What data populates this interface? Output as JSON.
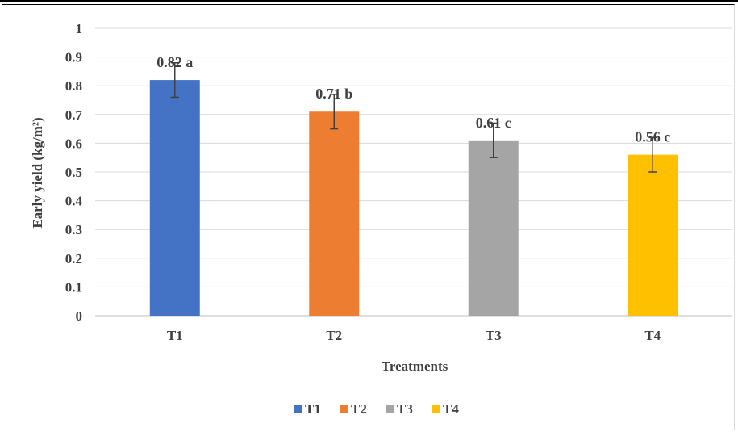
{
  "chart_data": {
    "type": "bar",
    "categories": [
      "T1",
      "T2",
      "T3",
      "T4"
    ],
    "values": [
      0.82,
      0.71,
      0.61,
      0.56
    ],
    "error": [
      0.06,
      0.06,
      0.06,
      0.06
    ],
    "data_labels": [
      "0.82 a",
      "0.71 b",
      "0.61 c",
      "0.56 c"
    ],
    "colors": [
      "#4472c4",
      "#ed7d31",
      "#a5a5a5",
      "#ffc000"
    ],
    "xlabel": "Treatments",
    "ylabel": "Early yield  (kg/m²)",
    "ylim": [
      0,
      1
    ],
    "yticks": [
      0,
      0.1,
      0.2,
      0.3,
      0.4,
      0.5,
      0.6,
      0.7,
      0.8,
      0.9,
      1
    ],
    "ytick_labels": [
      "0",
      "0.1",
      "0.2",
      "0.3",
      "0.4",
      "0.5",
      "0.6",
      "0.7",
      "0.8",
      "0.9",
      "1"
    ],
    "grid": true,
    "legend": {
      "position": "bottom",
      "entries": [
        "T1",
        "T2",
        "T3",
        "T4"
      ]
    }
  }
}
